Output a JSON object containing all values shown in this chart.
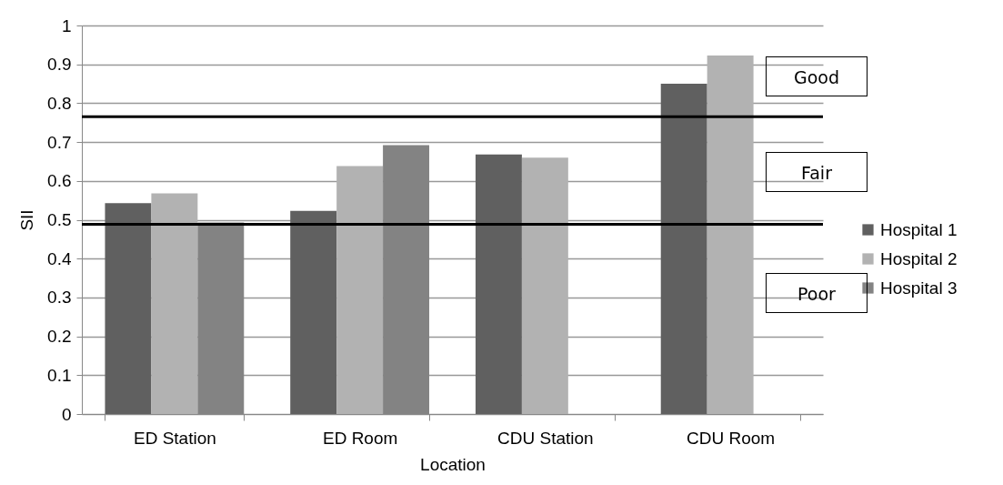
{
  "chart_data": {
    "type": "bar",
    "xlabel": "Location",
    "ylabel": "SII",
    "categories": [
      "ED Station",
      "ED Room",
      "CDU Station",
      "CDU Room"
    ],
    "series": [
      {
        "name": "Hospital 1",
        "color": "#606060",
        "values": [
          0.543,
          0.523,
          0.668,
          0.85
        ]
      },
      {
        "name": "Hospital 2",
        "color": "#b2b2b2",
        "values": [
          0.568,
          0.638,
          0.66,
          0.923
        ]
      },
      {
        "name": "Hospital 3",
        "color": "#838383",
        "values": [
          0.493,
          0.692,
          null,
          null
        ]
      }
    ],
    "ylim": [
      0,
      1
    ],
    "yticks": [
      0,
      0.1,
      0.2,
      0.3,
      0.4,
      0.5,
      0.6,
      0.7,
      0.8,
      0.9,
      1
    ],
    "ref_lines": [
      {
        "axis": "y",
        "value": 0.765,
        "color": "#000000"
      },
      {
        "axis": "y",
        "value": 0.488,
        "color": "#000000"
      }
    ],
    "annotations": [
      "Good",
      "Fair",
      "Poor"
    ],
    "grid": "y",
    "legend": "right"
  }
}
